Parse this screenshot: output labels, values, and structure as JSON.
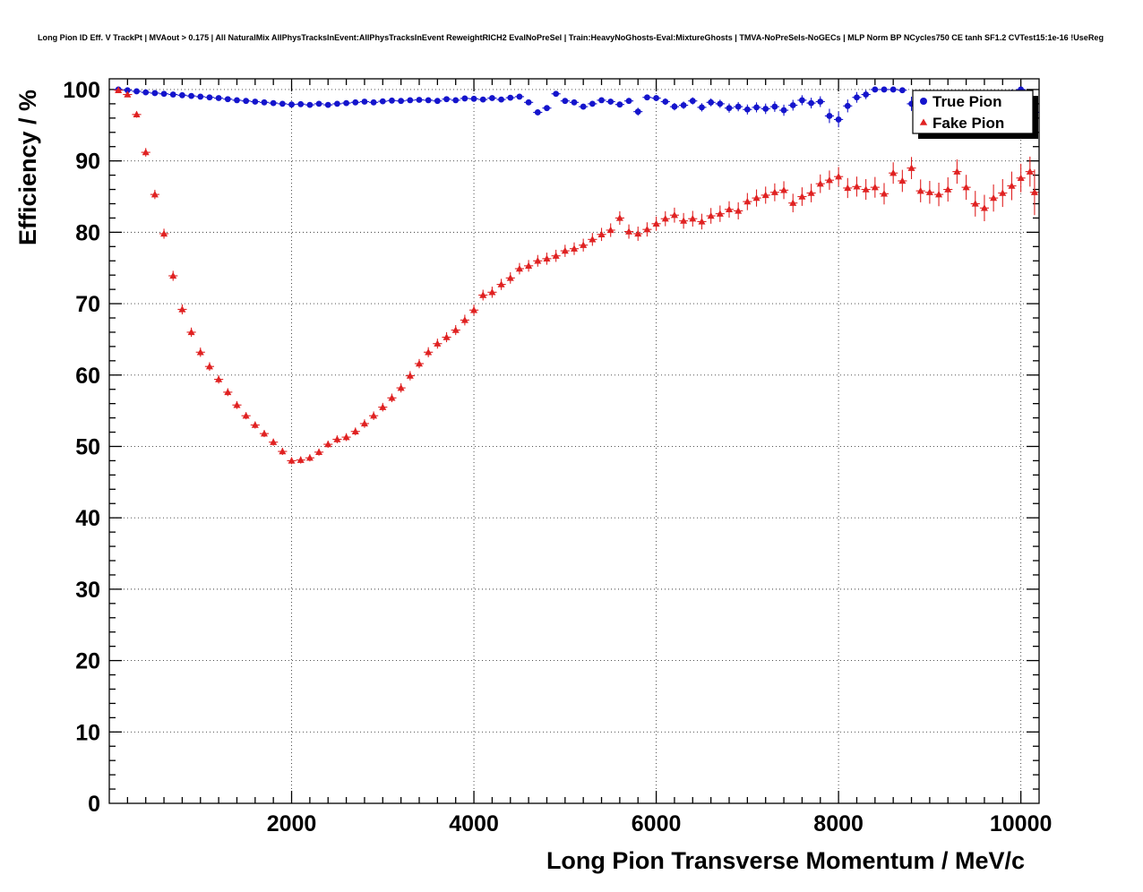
{
  "page": {
    "background": "#ffffff"
  },
  "chart_data": {
    "type": "scatter",
    "title": "Long Pion ID Eff. V TrackPt | MVAout > 0.175 | All NaturalMix AllPhysTracksInEvent:AllPhysTracksInEvent ReweightRICH2 EvalNoPreSel | Train:HeavyNoGhosts-Eval:MixtureGhosts | TMVA-NoPreSels-NoGECs | MLP Norm BP NCycles750 CE tanh SF1.2 CVTest15:1e-16 !UseReg",
    "xlabel": "Long Pion Transverse Momentum / MeV/c",
    "ylabel": "Efficiency / %",
    "xlim": [
      0,
      10200
    ],
    "ylim": [
      0,
      101.5
    ],
    "xticks": [
      2000,
      4000,
      6000,
      8000,
      10000
    ],
    "yticks": [
      0,
      10,
      20,
      30,
      40,
      50,
      60,
      70,
      80,
      90,
      100
    ],
    "x_minor_step": 200,
    "y_minor_step": 2,
    "grid": "dotted",
    "bin_half_width": 50,
    "legend": {
      "position": "top-right"
    },
    "series": [
      {
        "name": "True Pion",
        "color": "#1414cc",
        "marker": "circle",
        "points": [
          [
            100,
            100.0,
            0.05
          ],
          [
            200,
            99.9,
            0.06
          ],
          [
            300,
            99.75,
            0.08
          ],
          [
            400,
            99.6,
            0.09
          ],
          [
            500,
            99.5,
            0.1
          ],
          [
            600,
            99.4,
            0.1
          ],
          [
            700,
            99.3,
            0.1
          ],
          [
            800,
            99.2,
            0.1
          ],
          [
            900,
            99.1,
            0.1
          ],
          [
            1000,
            99.0,
            0.1
          ],
          [
            1100,
            98.9,
            0.1
          ],
          [
            1200,
            98.8,
            0.1
          ],
          [
            1300,
            98.65,
            0.1
          ],
          [
            1400,
            98.5,
            0.1
          ],
          [
            1500,
            98.4,
            0.1
          ],
          [
            1600,
            98.3,
            0.1
          ],
          [
            1700,
            98.2,
            0.1
          ],
          [
            1800,
            98.1,
            0.1
          ],
          [
            1900,
            98.0,
            0.1
          ],
          [
            2000,
            97.9,
            0.12
          ],
          [
            2100,
            97.95,
            0.12
          ],
          [
            2200,
            97.85,
            0.12
          ],
          [
            2300,
            98.0,
            0.13
          ],
          [
            2400,
            97.85,
            0.13
          ],
          [
            2500,
            98.0,
            0.14
          ],
          [
            2600,
            98.1,
            0.14
          ],
          [
            2700,
            98.2,
            0.15
          ],
          [
            2800,
            98.3,
            0.15
          ],
          [
            2900,
            98.2,
            0.16
          ],
          [
            3000,
            98.35,
            0.17
          ],
          [
            3100,
            98.45,
            0.17
          ],
          [
            3200,
            98.4,
            0.18
          ],
          [
            3300,
            98.5,
            0.18
          ],
          [
            3400,
            98.55,
            0.19
          ],
          [
            3500,
            98.5,
            0.2
          ],
          [
            3600,
            98.4,
            0.2
          ],
          [
            3700,
            98.65,
            0.21
          ],
          [
            3800,
            98.5,
            0.22
          ],
          [
            3900,
            98.75,
            0.22
          ],
          [
            4000,
            98.7,
            0.23
          ],
          [
            4100,
            98.6,
            0.24
          ],
          [
            4200,
            98.8,
            0.25
          ],
          [
            4300,
            98.6,
            0.26
          ],
          [
            4400,
            98.85,
            0.27
          ],
          [
            4500,
            99.0,
            0.27
          ],
          [
            4600,
            98.2,
            0.3
          ],
          [
            4700,
            96.8,
            0.4
          ],
          [
            4800,
            97.4,
            0.38
          ],
          [
            4900,
            99.4,
            0.25
          ],
          [
            5000,
            98.4,
            0.33
          ],
          [
            5100,
            98.2,
            0.35
          ],
          [
            5200,
            97.6,
            0.4
          ],
          [
            5300,
            98.0,
            0.4
          ],
          [
            5400,
            98.5,
            0.38
          ],
          [
            5500,
            98.3,
            0.4
          ],
          [
            5600,
            97.9,
            0.42
          ],
          [
            5700,
            98.4,
            0.42
          ],
          [
            5800,
            96.9,
            0.55
          ],
          [
            5900,
            98.9,
            0.4
          ],
          [
            6000,
            98.8,
            0.42
          ],
          [
            6100,
            98.3,
            0.46
          ],
          [
            6200,
            97.6,
            0.52
          ],
          [
            6300,
            97.8,
            0.52
          ],
          [
            6400,
            98.4,
            0.5
          ],
          [
            6500,
            97.5,
            0.58
          ],
          [
            6600,
            98.2,
            0.55
          ],
          [
            6700,
            98.0,
            0.58
          ],
          [
            6800,
            97.4,
            0.65
          ],
          [
            6900,
            97.6,
            0.65
          ],
          [
            7000,
            97.2,
            0.7
          ],
          [
            7100,
            97.5,
            0.7
          ],
          [
            7200,
            97.3,
            0.73
          ],
          [
            7300,
            97.6,
            0.73
          ],
          [
            7400,
            97.1,
            0.78
          ],
          [
            7500,
            97.8,
            0.75
          ],
          [
            7600,
            98.5,
            0.7
          ],
          [
            7700,
            98.1,
            0.75
          ],
          [
            7800,
            98.3,
            0.75
          ],
          [
            7900,
            96.3,
            1.0
          ],
          [
            8000,
            95.8,
            1.1
          ],
          [
            8100,
            97.7,
            0.9
          ],
          [
            8200,
            98.9,
            0.75
          ],
          [
            8300,
            99.3,
            0.65
          ],
          [
            8400,
            100.0,
            0.2
          ],
          [
            8500,
            100.0,
            0.25
          ],
          [
            8600,
            100.0,
            0.3
          ],
          [
            8700,
            99.9,
            0.4
          ],
          [
            8800,
            98.0,
            1.0
          ],
          [
            8900,
            96.4,
            1.3
          ],
          [
            9000,
            97.2,
            1.2
          ],
          [
            9100,
            99.0,
            0.9
          ],
          [
            9200,
            98.2,
            1.1
          ],
          [
            9300,
            98.6,
            1.0
          ],
          [
            9400,
            97.7,
            1.2
          ],
          [
            9500,
            97.9,
            1.2
          ],
          [
            9600,
            98.4,
            1.1
          ],
          [
            9700,
            98.8,
            1.1
          ],
          [
            9800,
            97.5,
            1.3
          ],
          [
            9900,
            99.2,
            0.8
          ],
          [
            10000,
            100.0,
            0.4
          ],
          [
            10100,
            97.0,
            1.5
          ],
          [
            10150,
            96.8,
            2.0
          ]
        ]
      },
      {
        "name": "Fake Pion",
        "color": "#e02222",
        "marker": "triangle",
        "points": [
          [
            100,
            99.9,
            0.1
          ],
          [
            200,
            99.3,
            0.25
          ],
          [
            300,
            96.5,
            0.45
          ],
          [
            400,
            91.2,
            0.6
          ],
          [
            500,
            85.3,
            0.65
          ],
          [
            600,
            79.8,
            0.7
          ],
          [
            700,
            73.9,
            0.7
          ],
          [
            800,
            69.2,
            0.7
          ],
          [
            900,
            66.0,
            0.65
          ],
          [
            1000,
            63.2,
            0.65
          ],
          [
            1100,
            61.2,
            0.6
          ],
          [
            1200,
            59.4,
            0.6
          ],
          [
            1300,
            57.6,
            0.55
          ],
          [
            1400,
            55.8,
            0.55
          ],
          [
            1500,
            54.3,
            0.5
          ],
          [
            1600,
            53.0,
            0.5
          ],
          [
            1700,
            51.8,
            0.5
          ],
          [
            1800,
            50.6,
            0.5
          ],
          [
            1900,
            49.3,
            0.5
          ],
          [
            2000,
            48.0,
            0.5
          ],
          [
            2100,
            48.1,
            0.5
          ],
          [
            2200,
            48.4,
            0.5
          ],
          [
            2300,
            49.2,
            0.5
          ],
          [
            2400,
            50.3,
            0.5
          ],
          [
            2500,
            51.0,
            0.55
          ],
          [
            2600,
            51.3,
            0.55
          ],
          [
            2700,
            52.1,
            0.55
          ],
          [
            2800,
            53.2,
            0.6
          ],
          [
            2900,
            54.3,
            0.6
          ],
          [
            3000,
            55.5,
            0.6
          ],
          [
            3100,
            56.8,
            0.6
          ],
          [
            3200,
            58.2,
            0.65
          ],
          [
            3300,
            59.9,
            0.65
          ],
          [
            3400,
            61.6,
            0.65
          ],
          [
            3500,
            63.2,
            0.7
          ],
          [
            3600,
            64.4,
            0.7
          ],
          [
            3700,
            65.3,
            0.7
          ],
          [
            3800,
            66.3,
            0.7
          ],
          [
            3900,
            67.7,
            0.75
          ],
          [
            4000,
            69.1,
            0.75
          ],
          [
            4100,
            71.2,
            0.75
          ],
          [
            4200,
            71.6,
            0.78
          ],
          [
            4300,
            72.7,
            0.78
          ],
          [
            4400,
            73.6,
            0.8
          ],
          [
            4500,
            74.9,
            0.8
          ],
          [
            4600,
            75.3,
            0.82
          ],
          [
            4700,
            76.0,
            0.82
          ],
          [
            4800,
            76.3,
            0.85
          ],
          [
            4900,
            76.7,
            0.85
          ],
          [
            5000,
            77.4,
            0.85
          ],
          [
            5100,
            77.7,
            0.88
          ],
          [
            5200,
            78.2,
            0.9
          ],
          [
            5300,
            79.0,
            0.9
          ],
          [
            5400,
            79.7,
            0.92
          ],
          [
            5500,
            80.3,
            0.95
          ],
          [
            5600,
            82.0,
            0.95
          ],
          [
            5700,
            80.1,
            1.0
          ],
          [
            5800,
            79.8,
            1.0
          ],
          [
            5900,
            80.4,
            1.0
          ],
          [
            6000,
            81.2,
            1.0
          ],
          [
            6100,
            81.9,
            1.05
          ],
          [
            6200,
            82.4,
            1.05
          ],
          [
            6300,
            81.6,
            1.1
          ],
          [
            6400,
            81.9,
            1.1
          ],
          [
            6500,
            81.5,
            1.1
          ],
          [
            6600,
            82.3,
            1.1
          ],
          [
            6700,
            82.6,
            1.15
          ],
          [
            6800,
            83.2,
            1.15
          ],
          [
            6900,
            83.0,
            1.2
          ],
          [
            7000,
            84.3,
            1.2
          ],
          [
            7100,
            84.8,
            1.2
          ],
          [
            7200,
            85.2,
            1.2
          ],
          [
            7300,
            85.6,
            1.25
          ],
          [
            7400,
            85.9,
            1.25
          ],
          [
            7500,
            84.1,
            1.3
          ],
          [
            7600,
            85.0,
            1.3
          ],
          [
            7700,
            85.5,
            1.3
          ],
          [
            7800,
            86.8,
            1.3
          ],
          [
            7900,
            87.3,
            1.35
          ],
          [
            8000,
            87.8,
            1.35
          ],
          [
            8100,
            86.2,
            1.4
          ],
          [
            8200,
            86.4,
            1.4
          ],
          [
            8300,
            86.0,
            1.45
          ],
          [
            8400,
            86.3,
            1.45
          ],
          [
            8500,
            85.4,
            1.5
          ],
          [
            8600,
            88.3,
            1.5
          ],
          [
            8700,
            87.2,
            1.55
          ],
          [
            8800,
            89.0,
            1.55
          ],
          [
            8900,
            85.8,
            1.6
          ],
          [
            9000,
            85.6,
            1.6
          ],
          [
            9100,
            85.3,
            1.65
          ],
          [
            9200,
            86.0,
            1.7
          ],
          [
            9300,
            88.5,
            1.7
          ],
          [
            9400,
            86.3,
            1.75
          ],
          [
            9500,
            84.0,
            1.8
          ],
          [
            9600,
            83.4,
            1.85
          ],
          [
            9700,
            84.8,
            1.9
          ],
          [
            9800,
            85.5,
            1.95
          ],
          [
            9900,
            86.5,
            2.0
          ],
          [
            10000,
            87.6,
            2.0
          ],
          [
            10100,
            88.5,
            2.1
          ],
          [
            10150,
            85.6,
            3.2
          ]
        ]
      }
    ]
  }
}
